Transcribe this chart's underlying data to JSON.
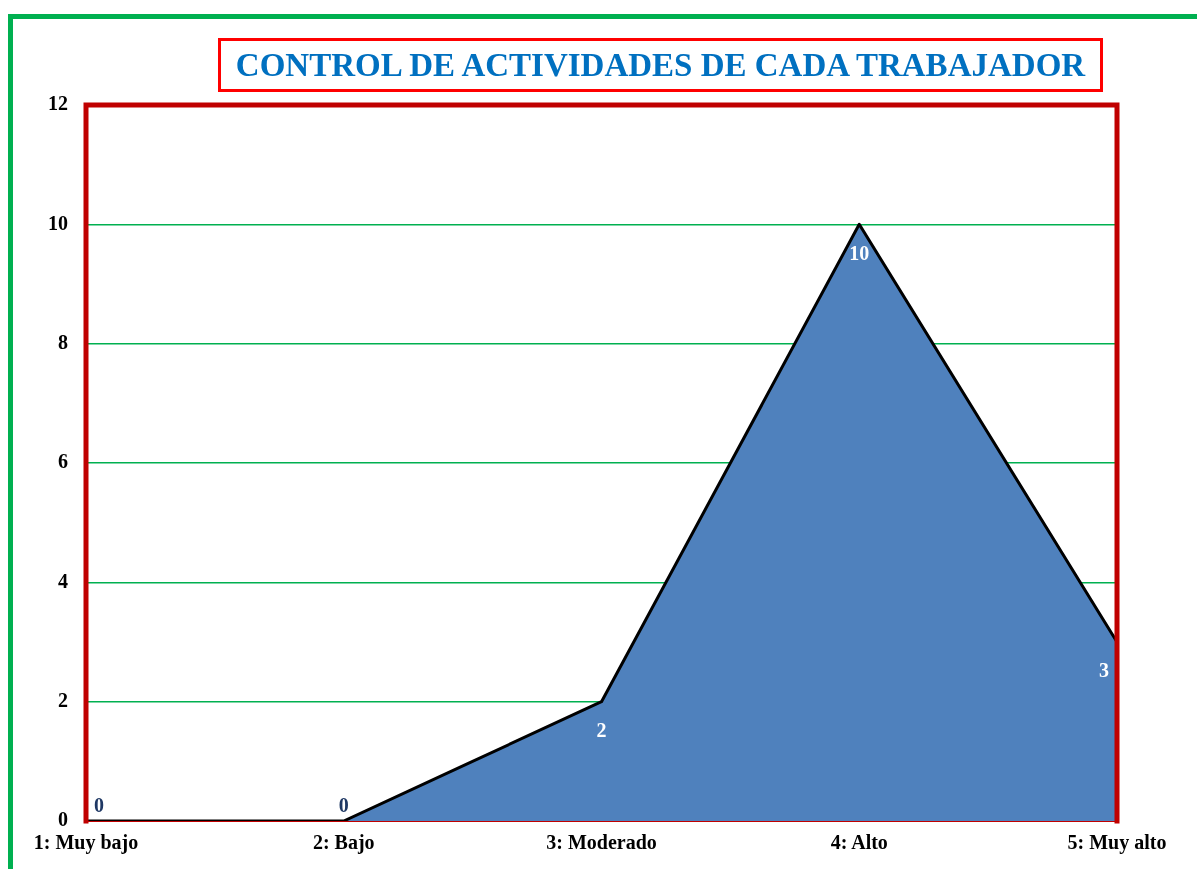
{
  "chart_data": {
    "type": "area",
    "title": "CONTROL DE ACTIVIDADES DE CADA TRABAJADOR",
    "categories": [
      "1: Muy bajo",
      "2: Bajo",
      "3: Moderado",
      "4: Alto",
      "5: Muy alto"
    ],
    "values": [
      0,
      0,
      2,
      10,
      3
    ],
    "color": "#4f81bd",
    "ylim": [
      0,
      12
    ],
    "yticks": [
      0,
      2,
      4,
      6,
      8,
      10,
      12
    ],
    "grid": "y",
    "legend": false,
    "data_labels": true
  }
}
